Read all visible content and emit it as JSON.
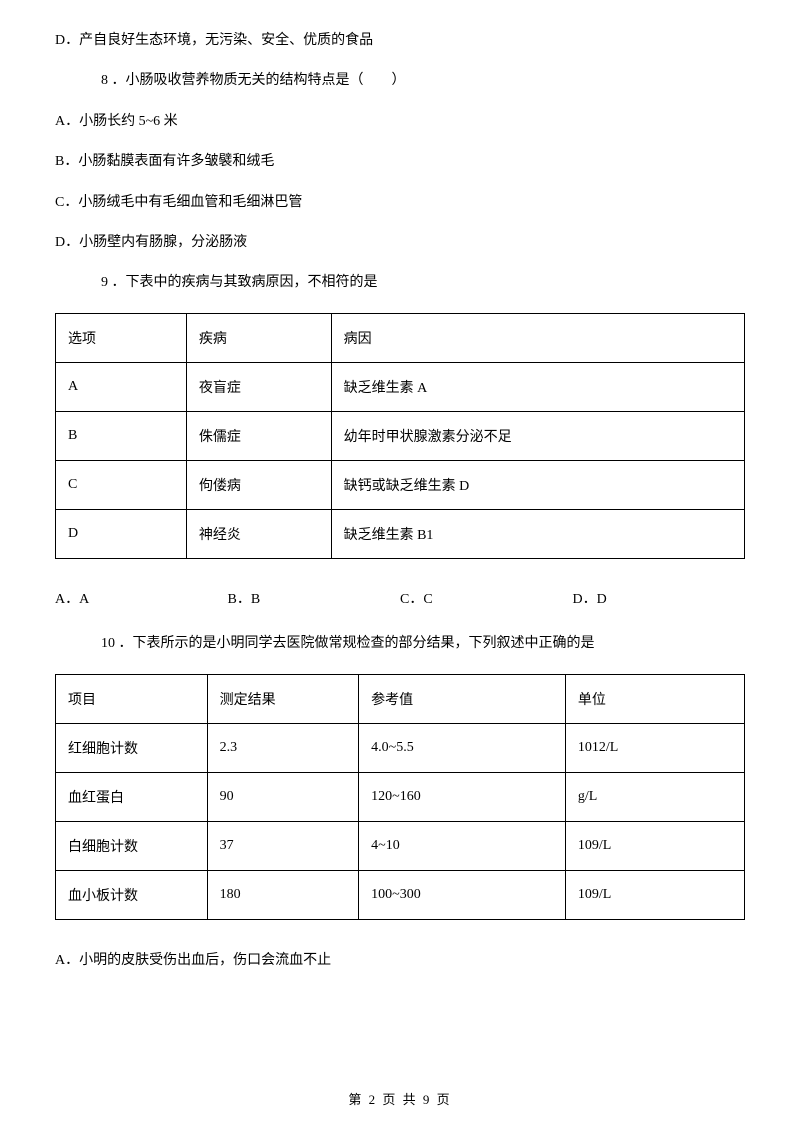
{
  "q7_optD": "D．产自良好生态环境，无污染、安全、优质的食品",
  "q8": {
    "stem": "8 ．小肠吸收营养物质无关的结构特点是（　　）",
    "optA": "A．小肠长约 5~6 米",
    "optB": "B．小肠黏膜表面有许多皱襞和绒毛",
    "optC": "C．小肠绒毛中有毛细血管和毛细淋巴管",
    "optD": "D．小肠壁内有肠腺，分泌肠液"
  },
  "q9": {
    "stem": "9 ．下表中的疾病与其致病原因，不相符的是",
    "table": {
      "columns": [
        "选项",
        "疾病",
        "病因"
      ],
      "rows": [
        [
          "A",
          "夜盲症",
          "缺乏维生素 A"
        ],
        [
          "B",
          "侏儒症",
          "幼年时甲状腺激素分泌不足"
        ],
        [
          "C",
          "佝偻病",
          "缺钙或缺乏维生素 D"
        ],
        [
          "D",
          "神经炎",
          "缺乏维生素 B1"
        ]
      ]
    },
    "choices": [
      "A．A",
      "B．B",
      "C．C",
      "D．D"
    ]
  },
  "q10": {
    "stem": "10 ．下表所示的是小明同学去医院做常规检查的部分结果，下列叙述中正确的是",
    "table": {
      "columns": [
        "项目",
        "测定结果",
        "参考值",
        "单位"
      ],
      "rows": [
        [
          "红细胞计数",
          "2.3",
          "4.0~5.5",
          "1012/L"
        ],
        [
          "血红蛋白",
          "90",
          "120~160",
          "g/L"
        ],
        [
          "白细胞计数",
          "37",
          "4~10",
          "109/L"
        ],
        [
          "血小板计数",
          "180",
          "100~300",
          "109/L"
        ]
      ]
    },
    "optA": "A．小明的皮肤受伤出血后，伤口会流血不止"
  },
  "footer": "第 2 页 共 9 页"
}
